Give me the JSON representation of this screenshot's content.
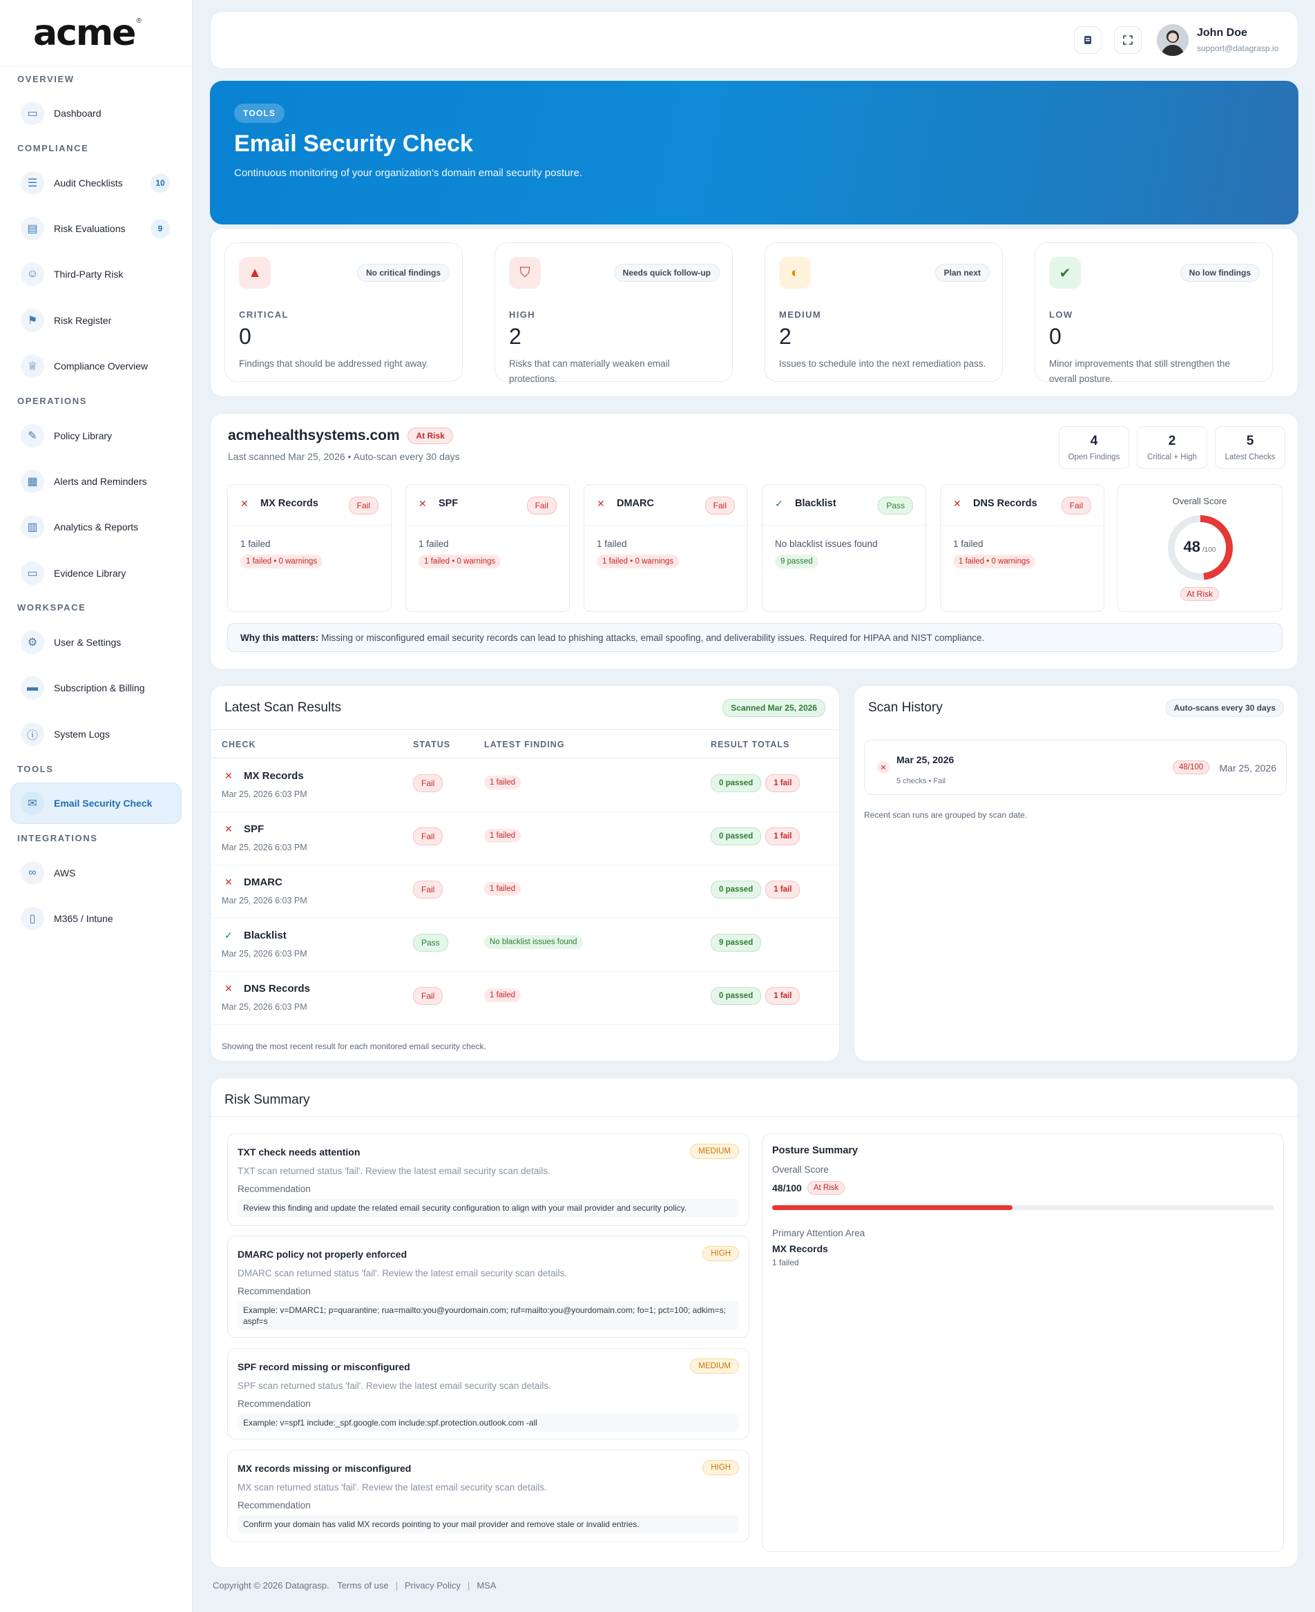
{
  "brand": {
    "logo": "acme",
    "reg": "®"
  },
  "sidebar": {
    "sections": [
      {
        "title": "OVERVIEW",
        "items": [
          {
            "label": "Dashboard",
            "icon": "monitor-icon"
          }
        ]
      },
      {
        "title": "COMPLIANCE",
        "items": [
          {
            "label": "Audit Checklists",
            "icon": "list-icon",
            "count": "10"
          },
          {
            "label": "Risk Evaluations",
            "icon": "document-icon",
            "count": "9"
          },
          {
            "label": "Third-Party Risk",
            "icon": "users-icon"
          },
          {
            "label": "Risk Register",
            "icon": "flag-icon"
          },
          {
            "label": "Compliance Overview",
            "icon": "trophy-icon"
          }
        ]
      },
      {
        "title": "OPERATIONS",
        "items": [
          {
            "label": "Policy Library",
            "icon": "edit-icon"
          },
          {
            "label": "Alerts and Reminders",
            "icon": "calendar-icon"
          },
          {
            "label": "Analytics & Reports",
            "icon": "bar-chart-icon"
          },
          {
            "label": "Evidence Library",
            "icon": "folder-icon"
          }
        ]
      },
      {
        "title": "WORKSPACE",
        "items": [
          {
            "label": "User & Settings",
            "icon": "gear-icon"
          },
          {
            "label": "Subscription & Billing",
            "icon": "card-icon"
          },
          {
            "label": "System Logs",
            "icon": "info-icon"
          }
        ]
      },
      {
        "title": "TOOLS",
        "items": [
          {
            "label": "Email Security Check",
            "icon": "mail-shield-icon",
            "active": true
          }
        ]
      },
      {
        "title": "INTEGRATIONS",
        "items": [
          {
            "label": "AWS",
            "icon": "link-icon"
          },
          {
            "label": "M365 / Intune",
            "icon": "device-icon"
          }
        ]
      }
    ]
  },
  "topbar": {
    "user_name": "John Doe",
    "user_email": "support@datagrasp.io"
  },
  "hero": {
    "pill": "TOOLS",
    "title": "Email Security Check",
    "subtitle": "Continuous monitoring of your organization's domain email security posture."
  },
  "severity": [
    {
      "level": "CRITICAL",
      "count": "0",
      "tag": "No critical findings",
      "desc": "Findings that should be addressed right away.",
      "color": "#d32f2f"
    },
    {
      "level": "HIGH",
      "count": "2",
      "tag": "Needs quick follow-up",
      "desc": "Risks that can materially weaken email protections.",
      "color": "#c0392b"
    },
    {
      "level": "MEDIUM",
      "count": "2",
      "tag": "Plan next",
      "desc": "Issues to schedule into the next remediation pass.",
      "color": "#e08a00"
    },
    {
      "level": "LOW",
      "count": "0",
      "tag": "No low findings",
      "desc": "Minor improvements that still strengthen the overall posture.",
      "color": "#2e7d32"
    }
  ],
  "domain": {
    "name": "acmehealthsystems.com",
    "status": "At Risk",
    "scan_info": "Last scanned Mar 25, 2026 • Auto-scan every 30 days",
    "stats": [
      {
        "value": "4",
        "label": "Open Findings"
      },
      {
        "value": "2",
        "label": "Critical + High"
      },
      {
        "value": "5",
        "label": "Latest Checks"
      }
    ],
    "checks": [
      {
        "name": "MX Records",
        "status": "Fail",
        "line1": "1 failed",
        "line2": "1 failed • 0 warnings"
      },
      {
        "name": "SPF",
        "status": "Fail",
        "line1": "1 failed",
        "line2": "1 failed • 0 warnings"
      },
      {
        "name": "DMARC",
        "status": "Fail",
        "line1": "1 failed",
        "line2": "1 failed • 0 warnings"
      },
      {
        "name": "Blacklist",
        "status": "Pass",
        "line1": "No blacklist issues found",
        "line2": "9 passed"
      },
      {
        "name": "DNS Records",
        "status": "Fail",
        "line1": "1 failed",
        "line2": "1 failed • 0 warnings"
      }
    ],
    "score": {
      "label": "Overall Score",
      "value": "48",
      "max": "/100",
      "fraction": 0.48,
      "status": "At Risk"
    },
    "why_label": "Why this matters:",
    "why_text": "Missing or misconfigured email security records can lead to phishing attacks, email spoofing, and deliverability issues. Required for HIPAA and NIST compliance."
  },
  "latest": {
    "title": "Latest Scan Results",
    "badge": "Scanned Mar 25, 2026",
    "columns": [
      "CHECK",
      "STATUS",
      "LATEST FINDING",
      "RESULT TOTALS"
    ],
    "rows": [
      {
        "name": "MX Records",
        "date": "Mar 25, 2026 6:03 PM",
        "status": "Fail",
        "finding": "1 failed",
        "passed": "0 passed",
        "fail": "1 fail"
      },
      {
        "name": "SPF",
        "date": "Mar 25, 2026 6:03 PM",
        "status": "Fail",
        "finding": "1 failed",
        "passed": "0 passed",
        "fail": "1 fail"
      },
      {
        "name": "DMARC",
        "date": "Mar 25, 2026 6:03 PM",
        "status": "Fail",
        "finding": "1 failed",
        "passed": "0 passed",
        "fail": "1 fail"
      },
      {
        "name": "Blacklist",
        "date": "Mar 25, 2026 6:03 PM",
        "status": "Pass",
        "finding": "No blacklist issues found",
        "passed": "9 passed",
        "fail": ""
      },
      {
        "name": "DNS Records",
        "date": "Mar 25, 2026 6:03 PM",
        "status": "Fail",
        "finding": "1 failed",
        "passed": "0 passed",
        "fail": "1 fail"
      }
    ],
    "footnote": "Showing the most recent result for each monitored email security check."
  },
  "history": {
    "title": "Scan History",
    "badge": "Auto-scans every 30 days",
    "item": {
      "date": "Mar 25, 2026",
      "sub": "5 checks • Fail",
      "score": "48/100",
      "date_right": "Mar 25, 2026"
    },
    "note": "Recent scan runs are grouped by scan date."
  },
  "risk": {
    "title": "Risk Summary",
    "recommendation_label": "Recommendation",
    "items": [
      {
        "title": "TXT check needs attention",
        "severity": "MEDIUM",
        "summary": "TXT scan returned status 'fail'. Review the latest email security scan details.",
        "rec": "Review this finding and update the related email security configuration to align with your mail provider and security policy."
      },
      {
        "title": "DMARC policy not properly enforced",
        "severity": "HIGH",
        "summary": "DMARC scan returned status 'fail'. Review the latest email security scan details.",
        "rec": "Example: v=DMARC1; p=quarantine; rua=mailto:you@yourdomain.com; ruf=mailto:you@yourdomain.com; fo=1; pct=100; adkim=s; aspf=s"
      },
      {
        "title": "SPF record missing or misconfigured",
        "severity": "MEDIUM",
        "summary": "SPF scan returned status 'fail'. Review the latest email security scan details.",
        "rec": "Example: v=spf1 include:_spf.google.com include:spf.protection.outlook.com -all"
      },
      {
        "title": "MX records missing or misconfigured",
        "severity": "HIGH",
        "summary": "MX scan returned status 'fail'. Review the latest email security scan details.",
        "rec": "Confirm your domain has valid MX records pointing to your mail provider and remove stale or invalid entries."
      }
    ],
    "posture": {
      "title": "Posture Summary",
      "score_label": "Overall Score",
      "score": "48/100",
      "status": "At Risk",
      "fraction": 0.48,
      "attention_label": "Primary Attention Area",
      "attention_value": "MX Records",
      "attention_sub": "1 failed"
    }
  },
  "footer": {
    "copyright": "Copyright © 2026 Datagrasp.",
    "links": [
      "Terms of use",
      "Privacy Policy",
      "MSA"
    ]
  }
}
